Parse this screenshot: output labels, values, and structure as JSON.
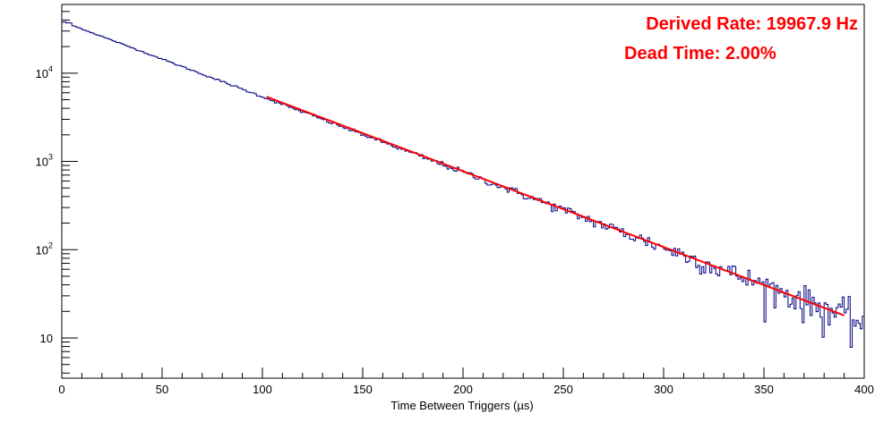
{
  "chart_data": {
    "type": "line",
    "title": "",
    "xlabel": "Time Between Triggers (µs)",
    "ylabel": "",
    "xlim": [
      0,
      400
    ],
    "ylim": [
      3.5,
      60000
    ],
    "yscale": "log",
    "grid": false,
    "x_ticks": [
      "0",
      "50",
      "100",
      "150",
      "200",
      "250",
      "300",
      "350",
      "400"
    ],
    "y_ticks": [
      {
        "base": "10",
        "exp": "",
        "value": 10
      },
      {
        "base": "10",
        "exp": "2",
        "value": 100
      },
      {
        "base": "10",
        "exp": "3",
        "value": 1000
      },
      {
        "base": "10",
        "exp": "4",
        "value": 10000
      }
    ],
    "annotations": [
      {
        "text": "Derived Rate: 19967.9 Hz",
        "color": "#ff0000"
      },
      {
        "text": "Dead Time: 2.00%",
        "color": "#ff0000"
      }
    ],
    "series": [
      {
        "style": "histogram",
        "color": "#000080",
        "x_start": 0,
        "x_end": 400,
        "peak": {
          "x": [
            0,
            2,
            4
          ],
          "y": [
            33000,
            38000,
            37000
          ]
        },
        "fit_reference": {
          "x": [
            100,
            200,
            300,
            390
          ],
          "y": [
            5400,
            750,
            100,
            18
          ]
        }
      },
      {
        "name": "",
        "style": "fit",
        "color": "#ff0000",
        "x": [
          102,
          390
        ],
        "y": [
          5400,
          18
        ]
      }
    ]
  }
}
